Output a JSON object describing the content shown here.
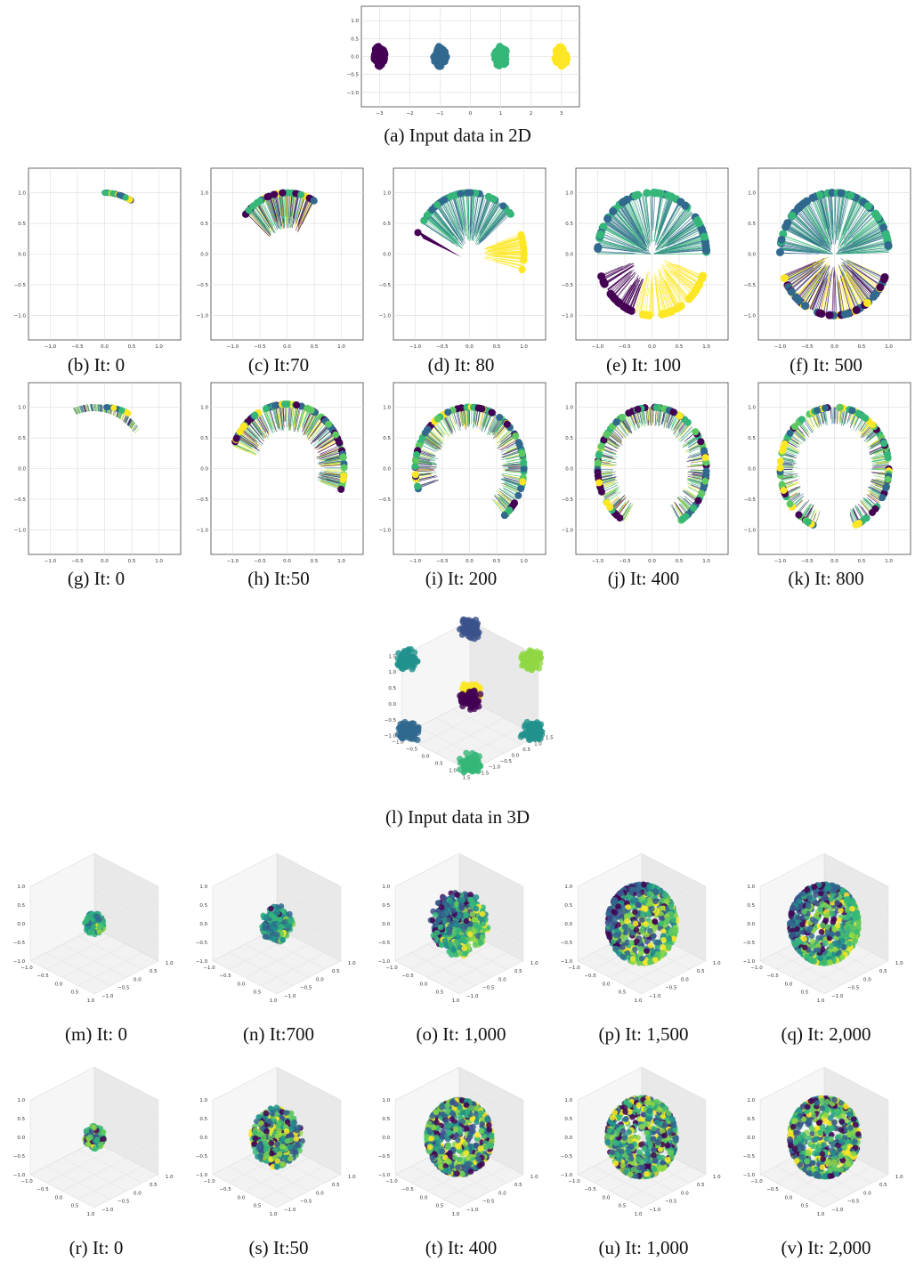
{
  "colors": {
    "c0": "#440154",
    "c1": "#31688e",
    "c2": "#35b779",
    "c3": "#fde725",
    "c4": "#3b528b",
    "c5": "#21918c",
    "c6": "#5ec962",
    "c7": "#90d743"
  },
  "ticks": {
    "x2d": [
      "−3",
      "−2",
      "−1",
      "0",
      "1",
      "2",
      "3"
    ],
    "y2d": [
      "1.0",
      "0.5",
      "0.0",
      "−0.5",
      "−1.0"
    ],
    "circ_x": [
      "−1.0",
      "−0.5",
      "0.0",
      "0.5",
      "1.0"
    ],
    "circ_y": [
      "1.0",
      "0.5",
      "0.0",
      "−0.5",
      "−1.0"
    ],
    "xyz_a": [
      "−1.0",
      "−0.5",
      "0.0",
      "0.5",
      "1.0",
      "1.5"
    ],
    "xyz_b": [
      "1.5",
      "1.0",
      "0.5",
      "0.0",
      "−0.5",
      "−1.0",
      "−1.5"
    ],
    "xyz_z": [
      "1.5",
      "1.0",
      "0.5",
      "0.0",
      "−0.5",
      "−1.0"
    ],
    "sph_x": [
      "−1.0",
      "−0.5",
      "0.0",
      "0.5",
      "1.0"
    ],
    "sph_y": [
      "1.0",
      "0.5",
      "0.0",
      "−0.5",
      "−1.0"
    ],
    "sph_z": [
      "1.0",
      "0.5",
      "0.0",
      "−0.5",
      "−1.0"
    ]
  },
  "captions": {
    "a": "(a) Input data in 2D",
    "b": "(b) It: 0",
    "c": "(c) It:70",
    "d": "(d) It: 80",
    "e": "(e) It: 100",
    "f": "(f) It: 500",
    "g": "(g) It: 0",
    "h": "(h) It:50",
    "i": "(i) It: 200",
    "j": "(j) It: 400",
    "k": "(k) It: 800",
    "l": "(l) Input data in 3D",
    "m": "(m) It: 0",
    "n": "(n) It:700",
    "o": "(o) It: 1,000",
    "p": "(p) It: 1,500",
    "q": "(q) It: 2,000",
    "r": "(r) It: 0",
    "s": "(s) It:50",
    "t": "(t) It: 400",
    "u": "(u) It: 1,000",
    "v": "(v) It: 2,000"
  },
  "chart_data": [
    {
      "id": "a",
      "type": "scatter",
      "xlim": [
        -3.6,
        3.6
      ],
      "ylim": [
        -1.4,
        1.4
      ],
      "clusters": [
        {
          "x": -3,
          "y": 0,
          "color": "c0"
        },
        {
          "x": -1,
          "y": 0,
          "color": "c1"
        },
        {
          "x": 1,
          "y": 0,
          "color": "c2"
        },
        {
          "x": 3,
          "y": 0,
          "color": "c3"
        }
      ]
    },
    {
      "id": "b",
      "type": "scatter",
      "xlim": [
        -1.4,
        1.4
      ],
      "ylim": [
        -1.4,
        1.4
      ]
    },
    {
      "id": "c",
      "type": "scatter",
      "xlim": [
        -1.4,
        1.4
      ],
      "ylim": [
        -1.4,
        1.4
      ]
    },
    {
      "id": "d",
      "type": "scatter",
      "xlim": [
        -1.4,
        1.4
      ],
      "ylim": [
        -1.4,
        1.4
      ]
    },
    {
      "id": "e",
      "type": "scatter",
      "xlim": [
        -1.4,
        1.4
      ],
      "ylim": [
        -1.4,
        1.4
      ]
    },
    {
      "id": "f",
      "type": "scatter",
      "xlim": [
        -1.4,
        1.4
      ],
      "ylim": [
        -1.4,
        1.4
      ]
    },
    {
      "id": "g",
      "type": "scatter",
      "xlim": [
        -1.4,
        1.4
      ],
      "ylim": [
        -1.4,
        1.4
      ]
    },
    {
      "id": "h",
      "type": "scatter",
      "xlim": [
        -1.4,
        1.4
      ],
      "ylim": [
        -1.4,
        1.4
      ]
    },
    {
      "id": "i",
      "type": "scatter",
      "xlim": [
        -1.4,
        1.4
      ],
      "ylim": [
        -1.4,
        1.4
      ]
    },
    {
      "id": "j",
      "type": "scatter",
      "xlim": [
        -1.4,
        1.4
      ],
      "ylim": [
        -1.4,
        1.4
      ]
    },
    {
      "id": "k",
      "type": "scatter",
      "xlim": [
        -1.4,
        1.4
      ],
      "ylim": [
        -1.4,
        1.4
      ]
    },
    {
      "id": "l",
      "type": "scatter",
      "dims": 3,
      "xlim": [
        -1.5,
        1.5
      ],
      "ylim": [
        -1.5,
        1.5
      ],
      "zlim": [
        -1.5,
        1.5
      ],
      "clusters": [
        {
          "x": -1,
          "y": 1,
          "z": 1,
          "color": "c5"
        },
        {
          "x": 1,
          "y": 1,
          "z": 1,
          "color": "c3"
        },
        {
          "x": -1,
          "y": -1,
          "z": 1,
          "color": "c4"
        },
        {
          "x": -1,
          "y": 1,
          "z": -1,
          "color": "c1"
        },
        {
          "x": 1,
          "y": 1,
          "z": -1,
          "color": "c2"
        },
        {
          "x": 1,
          "y": -1,
          "z": 1,
          "color": "c7"
        },
        {
          "x": -1,
          "y": -1,
          "z": -1,
          "color": "c0"
        },
        {
          "x": 1,
          "y": -1,
          "z": -1,
          "color": "c5"
        }
      ]
    },
    {
      "id": "m",
      "type": "scatter",
      "dims": 3,
      "xlim": [
        -1.2,
        1.2
      ],
      "ylim": [
        -1.2,
        1.2
      ],
      "zlim": [
        -1.2,
        1.2
      ]
    },
    {
      "id": "n",
      "type": "scatter",
      "dims": 3,
      "xlim": [
        -1.2,
        1.2
      ],
      "ylim": [
        -1.2,
        1.2
      ],
      "zlim": [
        -1.2,
        1.2
      ]
    },
    {
      "id": "o",
      "type": "scatter",
      "dims": 3,
      "xlim": [
        -1.2,
        1.2
      ],
      "ylim": [
        -1.2,
        1.2
      ],
      "zlim": [
        -1.2,
        1.2
      ]
    },
    {
      "id": "p",
      "type": "scatter",
      "dims": 3,
      "xlim": [
        -1.2,
        1.2
      ],
      "ylim": [
        -1.2,
        1.2
      ],
      "zlim": [
        -1.2,
        1.2
      ]
    },
    {
      "id": "q",
      "type": "scatter",
      "dims": 3,
      "xlim": [
        -1.2,
        1.2
      ],
      "ylim": [
        -1.2,
        1.2
      ],
      "zlim": [
        -1.2,
        1.2
      ]
    },
    {
      "id": "r",
      "type": "scatter",
      "dims": 3,
      "xlim": [
        -1.2,
        1.2
      ],
      "ylim": [
        -1.2,
        1.2
      ],
      "zlim": [
        -1.2,
        1.2
      ]
    },
    {
      "id": "s",
      "type": "scatter",
      "dims": 3,
      "xlim": [
        -1.2,
        1.2
      ],
      "ylim": [
        -1.2,
        1.2
      ],
      "zlim": [
        -1.2,
        1.2
      ]
    },
    {
      "id": "t",
      "type": "scatter",
      "dims": 3,
      "xlim": [
        -1.2,
        1.2
      ],
      "ylim": [
        -1.2,
        1.2
      ],
      "zlim": [
        -1.2,
        1.2
      ]
    },
    {
      "id": "u",
      "type": "scatter",
      "dims": 3,
      "xlim": [
        -1.2,
        1.2
      ],
      "ylim": [
        -1.2,
        1.2
      ],
      "zlim": [
        -1.2,
        1.2
      ]
    },
    {
      "id": "v",
      "type": "scatter",
      "dims": 3,
      "xlim": [
        -1.2,
        1.2
      ],
      "ylim": [
        -1.2,
        1.2
      ],
      "zlim": [
        -1.2,
        1.2
      ]
    }
  ]
}
